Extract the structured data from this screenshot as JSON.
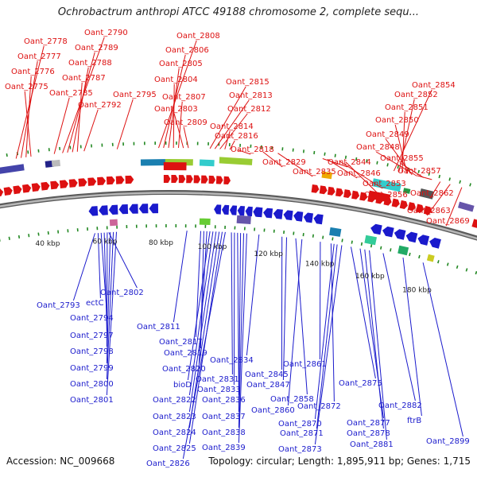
{
  "title": "Ochrobactrum anthropi ATCC 49188 chromosome 2, complete sequ...",
  "footer": {
    "accession": "Accession: NC_009668",
    "topology": "Topology: circular; Length: 1,895,911 bp; Genes: 1,715"
  },
  "scale_labels": [
    "40 kbp",
    "60 kbp",
    "80 kbp",
    "100 kbp",
    "120 kbp",
    "140 kbp",
    "160 kbp",
    "180 kbp"
  ],
  "forward_genes": [
    "Oant_2778",
    "Oant_2777",
    "Oant_2776",
    "Oant_2775",
    "Oant_2790",
    "Oant_2789",
    "Oant_2788",
    "Oant_2787",
    "Oant_2785",
    "Oant_2792",
    "Oant_2795",
    "Oant_2808",
    "Oant_2806",
    "Oant_2805",
    "Oant_2804",
    "Oant_2807",
    "Oant_2803",
    "Oant_2809",
    "Oant_2815",
    "Oant_2813",
    "Oant_2812",
    "Oant_2814",
    "Oant_2816",
    "Oant_2818",
    "Oant_2829",
    "Oant_2835",
    "Oant_2844",
    "Oant_2846",
    "Oant_2853",
    "Oant_2856",
    "Oant_2854",
    "Oant_2852",
    "Oant_2851",
    "Oant_2850",
    "Oant_2849",
    "Oant_2848",
    "Oant_2855",
    "Oant_2857",
    "Oant_2862",
    "Oant_2863",
    "Oant_2869"
  ],
  "reverse_genes": [
    "Oant_2793",
    "ectC",
    "Oant_2802",
    "Oant_2794",
    "Oant_2797",
    "Oant_2798",
    "Oant_2799",
    "Oant_2800",
    "Oant_2801",
    "Oant_2811",
    "Oant_2817",
    "Oant_2819",
    "Oant_2820",
    "bioD",
    "Oant_2822",
    "Oant_2823",
    "Oant_2824",
    "Oant_2825",
    "Oant_2826",
    "Oant_2831",
    "Oant_2833",
    "Oant_2834",
    "Oant_2836",
    "Oant_2837",
    "Oant_2838",
    "Oant_2839",
    "Oant_2845",
    "Oant_2847",
    "Oant_2858",
    "Oant_2860",
    "Oant_2861",
    "Oant_2872",
    "Oant_2870",
    "Oant_2871",
    "Oant_2873",
    "Oant_2875",
    "Oant_2877",
    "Oant_2878",
    "Oant_2881",
    "Oant_2882",
    "ftrB",
    "Oant_2899"
  ],
  "colors": {
    "forward": "#dd1111",
    "reverse": "#1a1acc",
    "backbone": "#888888",
    "tick": "#228822"
  }
}
